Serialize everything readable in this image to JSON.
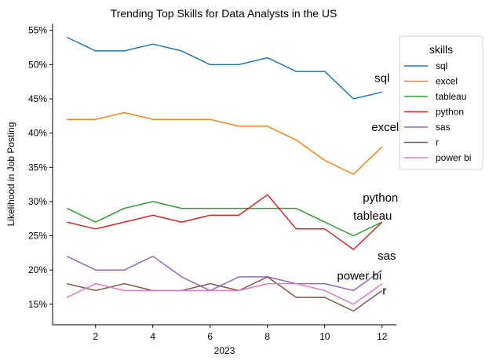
{
  "chart_data": {
    "type": "line",
    "title": "Trending Top Skills for Data Analysts in the US",
    "xlabel": "2023",
    "ylabel": "Likelihood in Job Posting",
    "x": [
      1,
      2,
      3,
      4,
      5,
      6,
      7,
      8,
      9,
      10,
      11,
      12
    ],
    "xlim": [
      0.5,
      12.5
    ],
    "ylim": [
      12,
      56
    ],
    "xticks": [
      2,
      4,
      6,
      8,
      10,
      12
    ],
    "yticks": [
      15,
      20,
      25,
      30,
      35,
      40,
      45,
      50,
      55
    ],
    "ytick_labels": [
      "15%",
      "20%",
      "25%",
      "30%",
      "35%",
      "40%",
      "45%",
      "50%",
      "55%"
    ],
    "grid": false,
    "legend": {
      "title": "skills",
      "placement": "right"
    },
    "series": [
      {
        "name": "sql",
        "color": "#1f77b4",
        "values": [
          54,
          52,
          52,
          53,
          52,
          50,
          50,
          51,
          49,
          49,
          45,
          46
        ],
        "end_label": "sql"
      },
      {
        "name": "excel",
        "color": "#ff7f0e",
        "values": [
          42,
          42,
          43,
          42,
          42,
          42,
          41,
          41,
          39,
          36,
          34,
          38
        ],
        "end_label": "excel"
      },
      {
        "name": "tableau",
        "color": "#2ca02c",
        "values": [
          29,
          27,
          29,
          30,
          29,
          29,
          29,
          29,
          29,
          27,
          25,
          27
        ],
        "end_label": "tableau"
      },
      {
        "name": "python",
        "color": "#d62728",
        "values": [
          27,
          26,
          27,
          28,
          27,
          28,
          28,
          31,
          26,
          26,
          23,
          27
        ],
        "end_label": "python"
      },
      {
        "name": "sas",
        "color": "#9467bd",
        "values": [
          22,
          20,
          20,
          22,
          19,
          17,
          19,
          19,
          18,
          18,
          17,
          20
        ],
        "end_label": "sas"
      },
      {
        "name": "r",
        "color": "#8c564b",
        "values": [
          18,
          17,
          18,
          17,
          17,
          18,
          17,
          19,
          16,
          16,
          14,
          17
        ],
        "end_label": "r"
      },
      {
        "name": "power bi",
        "color": "#e377c2",
        "values": [
          16,
          18,
          17,
          17,
          17,
          17,
          17,
          18,
          18,
          17,
          15,
          18
        ],
        "end_label": "power bi"
      }
    ]
  }
}
